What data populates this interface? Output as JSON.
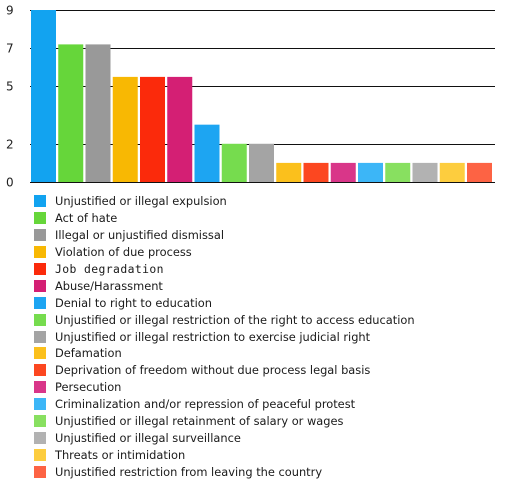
{
  "chart_data": {
    "type": "bar",
    "ylim": [
      0,
      9
    ],
    "yticks": [
      0,
      2,
      5,
      7,
      9
    ],
    "grid": true,
    "legend_placement": "bottom",
    "series": [
      {
        "name": "Unjustified or illegal expulsion",
        "value": 9,
        "color": "#12a3f0"
      },
      {
        "name": "Act of hate",
        "value": 7.2,
        "color": "#66d63a"
      },
      {
        "name": "Illegal or unjustified dismissal",
        "value": 7.2,
        "color": "#999999"
      },
      {
        "name": "Violation of due process",
        "value": 5.5,
        "color": "#f8b803"
      },
      {
        "name": "Job degradation",
        "value": 5.5,
        "color": "#fb2a0b"
      },
      {
        "name": "Abuse/Harassment",
        "value": 5.5,
        "color": "#d41f74"
      },
      {
        "name": "Denial to right to education",
        "value": 3,
        "color": "#1da5f2"
      },
      {
        "name": "Unjustified or illegal restriction of the right to access education",
        "value": 2,
        "color": "#76dc4e"
      },
      {
        "name": "Unjustified or illegal restriction to exercise judicial right",
        "value": 2,
        "color": "#a4a4a4"
      },
      {
        "name": "Defamation",
        "value": 1,
        "color": "#fbc01c"
      },
      {
        "name": "Deprivation of freedom without due process legal basis",
        "value": 1,
        "color": "#fc4720"
      },
      {
        "name": "Persecution",
        "value": 1,
        "color": "#d93689"
      },
      {
        "name": "Criminalization and/or repression of peaceful protest",
        "value": 1,
        "color": "#3cb6f7"
      },
      {
        "name": "Unjustified or illegal retainment of salary or wages",
        "value": 1,
        "color": "#88e060"
      },
      {
        "name": "Unjustified or illegal surveillance",
        "value": 1,
        "color": "#b2b2b2"
      },
      {
        "name": "Threats or intimidation",
        "value": 1,
        "color": "#fdcd3e"
      },
      {
        "name": "Unjustified restriction from leaving the country",
        "value": 1,
        "color": "#fd6344"
      }
    ]
  }
}
